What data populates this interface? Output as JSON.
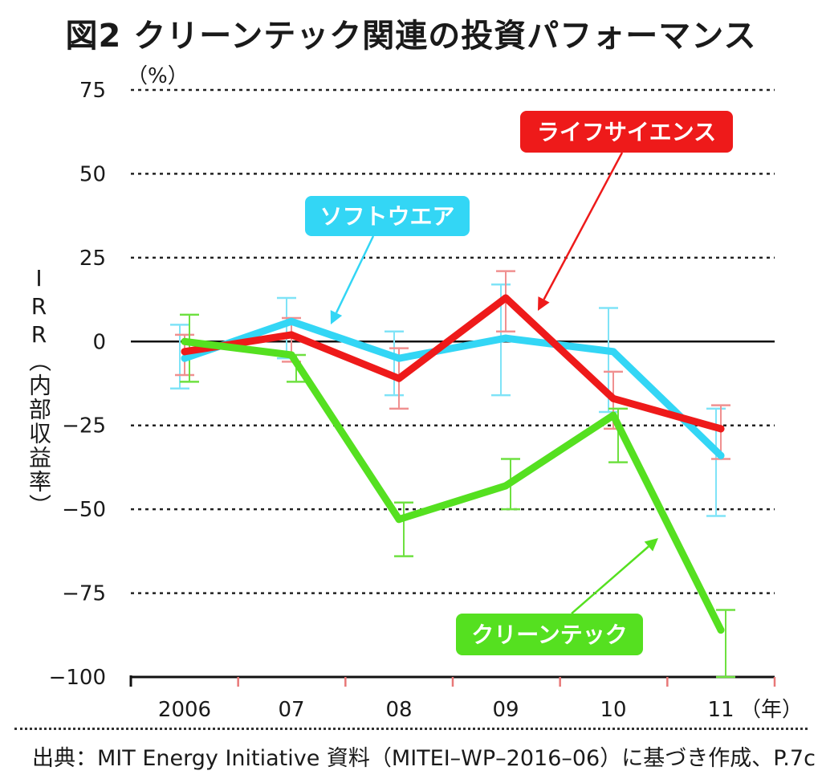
{
  "title": "図2 クリーンテック関連の投資パフォーマンス",
  "y_unit": "（%）",
  "x_unit": "（年）",
  "ylabel": "IRR（内部収益率）",
  "source": "出典：MIT Energy Initiative 資料（MITEI–WP–2016–06）に基づき作成、P.7c",
  "chart_data": {
    "type": "line",
    "categories": [
      "2006",
      "07",
      "08",
      "09",
      "10",
      "11"
    ],
    "ylim": [
      -100,
      75
    ],
    "yticks": [
      75,
      50,
      25,
      0,
      -25,
      -50,
      -75,
      -100
    ],
    "ytick_labels": [
      "75",
      "50",
      "25",
      "0",
      "−25",
      "−50",
      "−75",
      "−100"
    ],
    "grid": "dotted horizontal",
    "series": [
      {
        "name": "ソフトウエア",
        "color": "#33d6f5",
        "errcolor": "#7fe3f7",
        "values": [
          -5,
          6,
          -5,
          1,
          -3,
          -34
        ],
        "err_low": [
          -14,
          -5,
          -16,
          -16,
          -21,
          -52
        ],
        "err_high": [
          5,
          13,
          3,
          17,
          10,
          -20
        ]
      },
      {
        "name": "ライフサイエンス",
        "color": "#ee1a1a",
        "errcolor": "#f09090",
        "values": [
          -3,
          2,
          -11,
          13,
          -17,
          -26
        ],
        "err_low": [
          -10,
          -6,
          -20,
          3,
          -26,
          -35
        ],
        "err_high": [
          2,
          7,
          -2,
          21,
          -9,
          -19
        ]
      },
      {
        "name": "クリーンテック",
        "color": "#55e020",
        "errcolor": "#6ee040",
        "values": [
          0,
          -4,
          -53,
          -43,
          -22,
          -86
        ],
        "err_low": [
          -12,
          -12,
          -64,
          -50,
          -36,
          -100
        ],
        "err_high": [
          8,
          -4,
          -48,
          -35,
          -20,
          -80
        ]
      }
    ],
    "callouts": [
      {
        "label": "ソフトウエア",
        "color": "#33d6f5"
      },
      {
        "label": "ライフサイエンス",
        "color": "#ee1a1a"
      },
      {
        "label": "クリーンテック",
        "color": "#55e020"
      }
    ]
  }
}
